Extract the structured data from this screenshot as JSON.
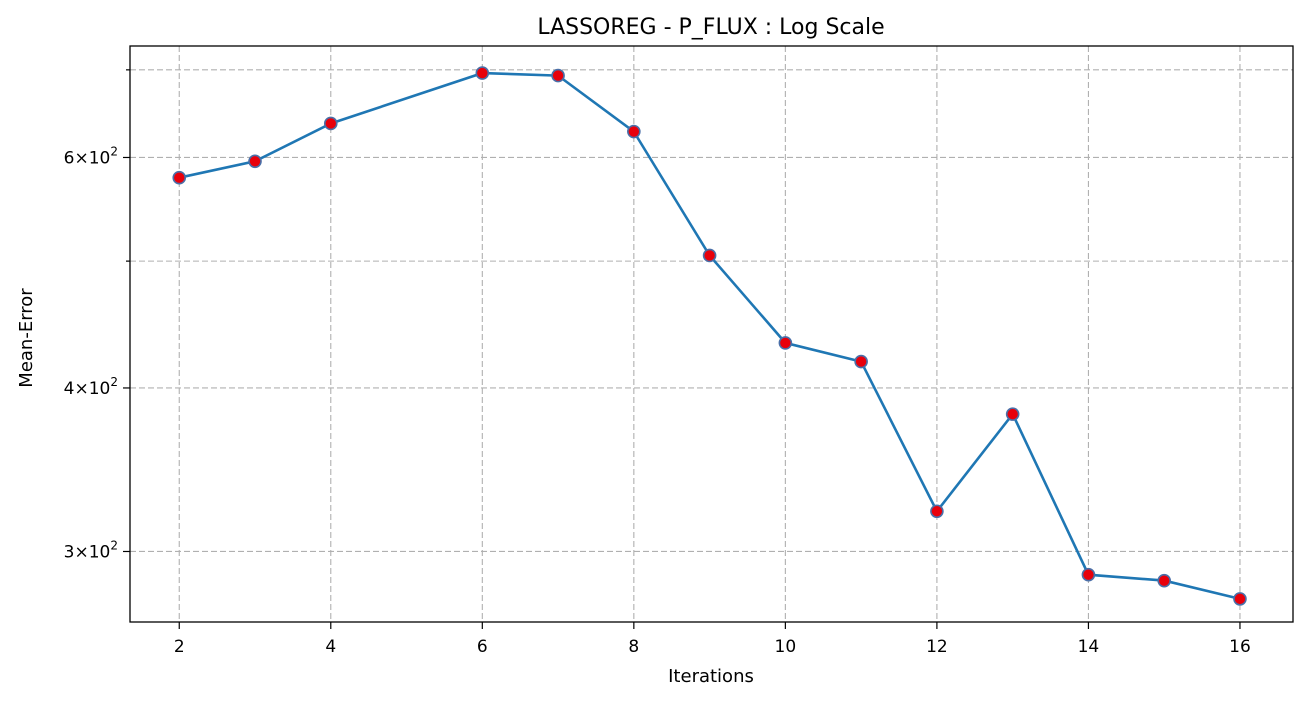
{
  "chart_data": {
    "type": "line",
    "title": "LASSOREG - P_FLUX : Log Scale",
    "xlabel": "Iterations",
    "ylabel": "Mean-Error",
    "y_scale": "log",
    "grid": true,
    "x_ticks": [
      2,
      4,
      6,
      8,
      10,
      12,
      14,
      16
    ],
    "y_major_ticks": [
      {
        "value": 300,
        "label_mantissa": "3",
        "label_base": "10",
        "label_exp": "2"
      },
      {
        "value": 400,
        "label_mantissa": "4",
        "label_base": "10",
        "label_exp": "2"
      },
      {
        "value": 600,
        "label_mantissa": "6",
        "label_base": "10",
        "label_exp": "2"
      }
    ],
    "y_minor_ticks": [
      500,
      700
    ],
    "xlim": [
      1.35,
      16.7
    ],
    "ylim": [
      265,
      730
    ],
    "series": [
      {
        "color": "#1f77b4",
        "marker_face": "#e8000b",
        "marker_edge": "#4a6fa8",
        "x": [
          2,
          3,
          4,
          6,
          7,
          8,
          9,
          10,
          11,
          12,
          13,
          14,
          15,
          16
        ],
        "y": [
          579,
          596,
          637,
          696,
          693,
          628,
          505,
          433,
          419,
          322,
          382,
          288,
          285,
          276
        ]
      }
    ]
  }
}
